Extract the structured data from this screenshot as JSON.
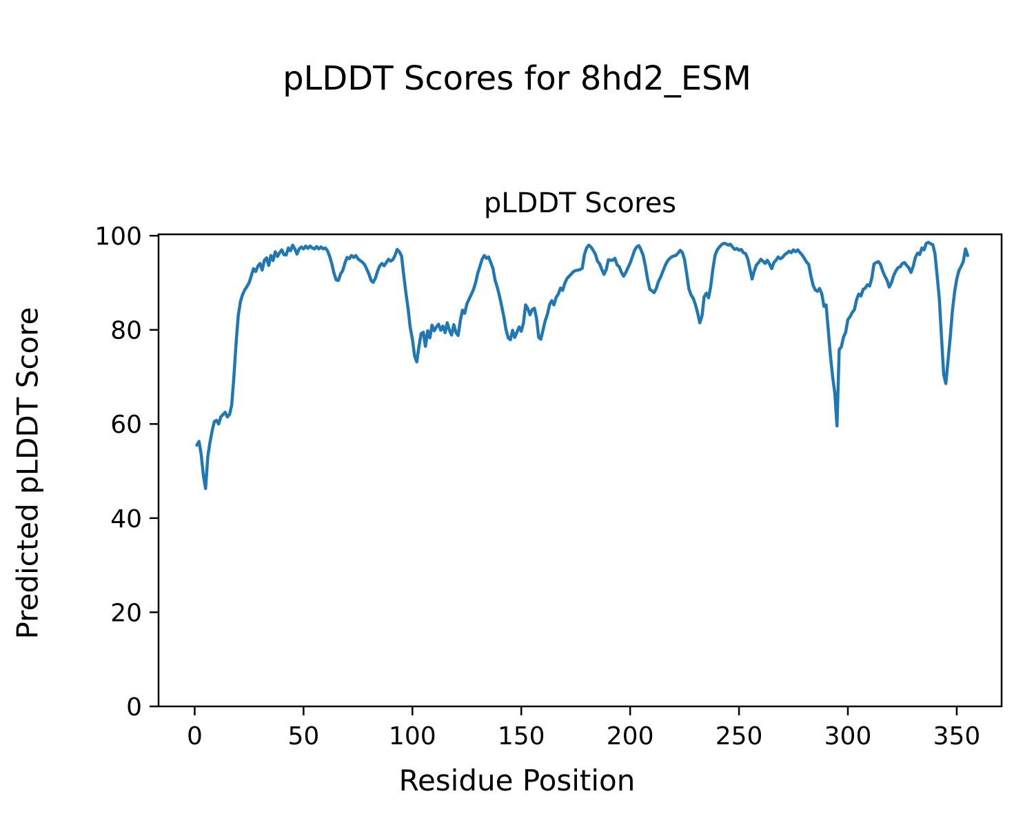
{
  "figure": {
    "suptitle": "pLDDT Scores for 8hd2_ESM",
    "axes_title": "pLDDT Scores",
    "xlabel": "Residue Position",
    "ylabel": "Predicted pLDDT Score",
    "background_color": "#ffffff",
    "text_color": "#000000",
    "spine_color": "#000000"
  },
  "chart_data": {
    "type": "line",
    "title": "pLDDT Scores",
    "xlabel": "Residue Position",
    "ylabel": "Predicted pLDDT Score",
    "line_color": "#1f77b4",
    "grid": false,
    "legend": null,
    "x_ticks": [
      0,
      50,
      100,
      150,
      200,
      250,
      300,
      350
    ],
    "y_ticks": [
      0,
      20,
      40,
      60,
      80,
      100
    ],
    "xlim": [
      -16.6,
      370.6
    ],
    "ylim": [
      0,
      100.3
    ],
    "x_start": 1,
    "x_step": 1,
    "values": [
      55.5,
      56.3,
      53.5,
      49.0,
      46.3,
      53.0,
      56.0,
      58.5,
      60.5,
      60.8,
      60.0,
      61.5,
      62.0,
      62.5,
      61.5,
      62.0,
      64.0,
      70.0,
      77.0,
      83.0,
      86.0,
      87.5,
      88.5,
      89.2,
      90.0,
      91.5,
      93.0,
      92.4,
      93.5,
      94.1,
      92.7,
      94.8,
      95.3,
      93.7,
      95.8,
      94.7,
      96.6,
      95.6,
      96.4,
      97.0,
      96.0,
      95.9,
      97.4,
      96.8,
      98.0,
      97.2,
      96.1,
      97.2,
      97.6,
      97.2,
      97.8,
      97.3,
      97.8,
      97.4,
      97.2,
      97.7,
      97.2,
      97.6,
      97.2,
      97.4,
      96.8,
      95.6,
      94.0,
      92.0,
      90.6,
      90.5,
      91.9,
      92.6,
      94.2,
      95.4,
      95.1,
      95.8,
      95.4,
      95.8,
      95.1,
      94.7,
      94.4,
      93.9,
      92.9,
      91.9,
      90.5,
      90.1,
      91.0,
      92.5,
      93.6,
      94.1,
      93.6,
      94.3,
      95.0,
      94.6,
      94.9,
      95.8,
      97.1,
      96.6,
      95.7,
      91.6,
      87.9,
      84.5,
      80.5,
      78.0,
      74.5,
      73.2,
      76.5,
      79.2,
      79.5,
      76.5,
      79.8,
      78.3,
      81.0,
      79.8,
      80.6,
      81.2,
      79.9,
      80.8,
      79.4,
      81.5,
      79.9,
      78.9,
      81.1,
      79.4,
      78.8,
      82.0,
      84.2,
      83.5,
      85.5,
      86.5,
      87.5,
      88.5,
      90.0,
      92.0,
      93.5,
      95.0,
      95.8,
      95.2,
      95.5,
      94.3,
      93.0,
      90.5,
      89.0,
      87.2,
      85.0,
      82.8,
      80.0,
      78.3,
      77.9,
      79.9,
      78.4,
      79.5,
      80.6,
      79.7,
      81.5,
      85.3,
      84.5,
      83.2,
      84.3,
      84.6,
      82.5,
      78.4,
      78.0,
      80.0,
      82.0,
      83.3,
      85.4,
      86.2,
      85.3,
      86.9,
      87.6,
      88.9,
      88.4,
      89.9,
      90.9,
      91.4,
      91.9,
      92.4,
      92.6,
      92.7,
      92.8,
      93.1,
      96.0,
      97.4,
      98.0,
      97.6,
      96.9,
      96.1,
      94.6,
      94.0,
      92.8,
      91.8,
      92.8,
      94.9,
      94.8,
      94.8,
      95.2,
      93.8,
      93.4,
      92.2,
      91.4,
      92.2,
      93.2,
      94.2,
      95.5,
      96.9,
      97.6,
      97.9,
      97.0,
      95.8,
      93.5,
      90.8,
      88.6,
      88.3,
      87.9,
      88.8,
      90.3,
      91.2,
      92.4,
      93.6,
      94.5,
      95.1,
      95.5,
      95.7,
      95.8,
      96.3,
      96.9,
      96.4,
      94.9,
      91.8,
      88.7,
      87.4,
      86.7,
      85.3,
      83.6,
      81.5,
      83.0,
      87.0,
      87.8,
      86.8,
      89.2,
      93.0,
      95.8,
      97.0,
      97.6,
      98.1,
      98.4,
      98.3,
      98.0,
      98.2,
      97.6,
      97.1,
      97.3,
      96.9,
      97.1,
      96.4,
      96.2,
      95.1,
      93.0,
      90.8,
      92.5,
      93.8,
      94.3,
      95.0,
      94.6,
      94.1,
      94.8,
      94.0,
      93.0,
      94.3,
      94.8,
      95.5,
      95.1,
      95.4,
      96.0,
      96.3,
      96.7,
      96.4,
      97.0,
      96.6,
      97.0,
      96.4,
      95.9,
      95.2,
      94.4,
      93.9,
      91.5,
      89.5,
      88.5,
      88.2,
      88.8,
      87.7,
      85.0,
      85.3,
      79.9,
      74.5,
      70.0,
      66.5,
      59.6,
      75.8,
      76.4,
      78.5,
      79.5,
      82.2,
      82.8,
      83.7,
      84.3,
      86.4,
      87.6,
      87.2,
      88.6,
      88.9,
      89.6,
      89.3,
      91.0,
      94.0,
      94.3,
      94.5,
      93.9,
      92.5,
      91.4,
      90.5,
      89.1,
      90.0,
      91.5,
      92.5,
      93.2,
      93.4,
      94.1,
      94.3,
      93.7,
      93.2,
      92.2,
      93.5,
      95.4,
      96.3,
      96.0,
      97.4,
      97.0,
      98.4,
      98.6,
      98.3,
      98.1,
      96.2,
      91.5,
      86.5,
      78.5,
      70.5,
      68.6,
      73.5,
      78.5,
      84.0,
      88.0,
      90.8,
      92.6,
      93.5,
      94.5,
      97.2,
      95.8
    ]
  }
}
